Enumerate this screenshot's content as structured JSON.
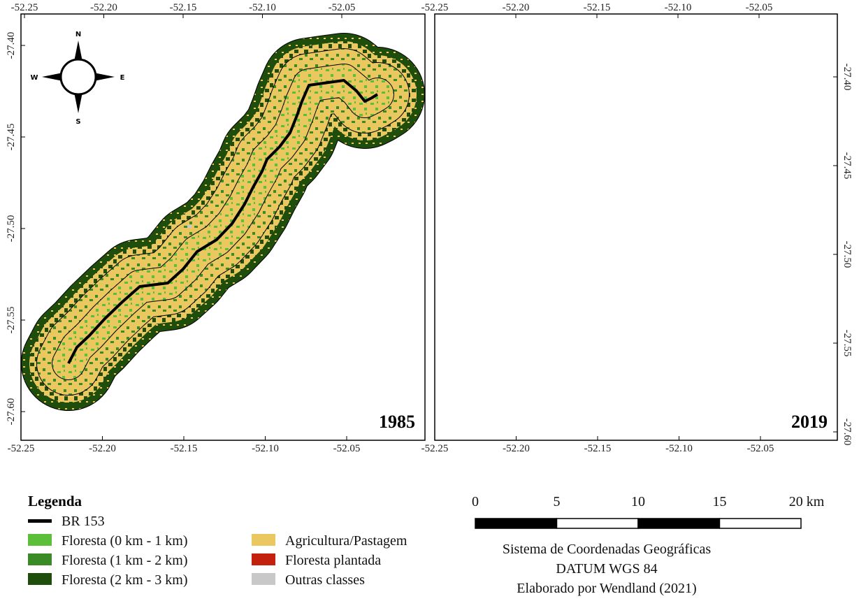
{
  "maps": [
    {
      "year": "1985",
      "top_ticks": [
        "-52.25",
        "-52.20",
        "-52.15",
        "-52.10",
        "-52.05"
      ],
      "bottom_ticks": [
        "-52.25",
        "-52.20",
        "-52.15",
        "-52.10",
        "-52.05"
      ],
      "lat_ticks": [
        "-27.40",
        "-27.45",
        "-27.50",
        "-27.55",
        "-27.60"
      ]
    },
    {
      "year": "2019",
      "top_ticks": [
        "-52.25",
        "-52.20",
        "-52.15",
        "-52.10",
        "-52.05"
      ],
      "bottom_ticks": [
        "-52.25",
        "-52.20",
        "-52.15",
        "-52.10",
        "-52.05"
      ],
      "lat_ticks": [
        "-27.40",
        "-27.45",
        "-27.50",
        "-27.55",
        "-27.60"
      ]
    }
  ],
  "compass": {
    "n": "N",
    "s": "S",
    "e": "E",
    "w": "W"
  },
  "legend": {
    "title": "Legenda",
    "items": [
      {
        "label": "BR 153",
        "color": "#000000"
      },
      {
        "label": "Floresta (0 km - 1 km)",
        "color": "#5cbf3a"
      },
      {
        "label": "Floresta (1 km - 2 km)",
        "color": "#3a8a25"
      },
      {
        "label": "Floresta (2 km - 3 km)",
        "color": "#1f4d0c"
      },
      {
        "label": "Agricultura/Pastagem",
        "color": "#ebc85f"
      },
      {
        "label": "Floresta plantada",
        "color": "#c4200e"
      },
      {
        "label": "Outras classes",
        "color": "#c8c8c8"
      }
    ]
  },
  "scale_bar": {
    "labels": [
      "0",
      "5",
      "10",
      "15",
      "20 km"
    ]
  },
  "credits": [
    "Sistema de Coordenadas Geográficas",
    "DATUM WGS 84",
    "Elaborado por Wendland (2021)"
  ]
}
